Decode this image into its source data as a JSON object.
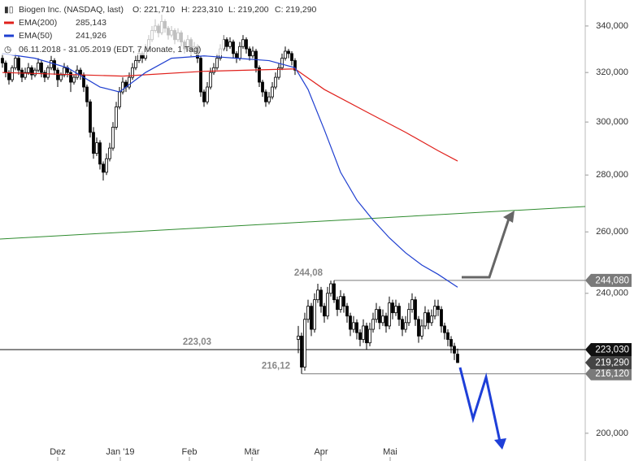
{
  "chart_data": {
    "type": "candlestick",
    "title": "Biogen Inc. (NASDAQ, last)",
    "ohlc_labels": [
      "O: 221,710",
      "H: 223,310",
      "L: 219,200",
      "C: 219,290"
    ],
    "period": "06.11.2018 - 31.05.2019 (EDT, 7 Monate, 1 Tag)",
    "log_scale": true,
    "ylim": [
      192.9,
      351.7
    ],
    "xlim": [
      -0.75,
      179.25
    ],
    "yticks": [
      {
        "value": 340,
        "label": "340,000"
      },
      {
        "value": 320,
        "label": "320,000"
      },
      {
        "value": 300,
        "label": "300,000"
      },
      {
        "value": 280,
        "label": "280,000"
      },
      {
        "value": 260,
        "label": "260,000"
      },
      {
        "value": 240,
        "label": "240,000"
      },
      {
        "value": 200,
        "label": "200,000"
      }
    ],
    "xticks": [
      {
        "value": 17,
        "label": "Dez"
      },
      {
        "value": 36.25,
        "label": "Jan '19"
      },
      {
        "value": 57.5,
        "label": "Feb"
      },
      {
        "value": 76.75,
        "label": "Mär"
      },
      {
        "value": 98,
        "label": "Apr"
      },
      {
        "value": 119.25,
        "label": "Mai"
      }
    ],
    "candles": [
      [
        326,
        328,
        322,
        324
      ],
      [
        324,
        325,
        318,
        320
      ],
      [
        320,
        321,
        315,
        317
      ],
      [
        317,
        323,
        316,
        322
      ],
      [
        322,
        328,
        321,
        326
      ],
      [
        326,
        327,
        319,
        321
      ],
      [
        321,
        322,
        316,
        318
      ],
      [
        318,
        322,
        317,
        320
      ],
      [
        320,
        324,
        319,
        322
      ],
      [
        322,
        323,
        317,
        319
      ],
      [
        319,
        322,
        318,
        321
      ],
      [
        321,
        326,
        320,
        324
      ],
      [
        324,
        325,
        318,
        320
      ],
      [
        320,
        321,
        316,
        318
      ],
      [
        318,
        323,
        317,
        322
      ],
      [
        322,
        327,
        321,
        325
      ],
      [
        325,
        326,
        319,
        321
      ],
      [
        321,
        322,
        314,
        317
      ],
      [
        317,
        320,
        316,
        319
      ],
      [
        319,
        324,
        318,
        322
      ],
      [
        322,
        323,
        318,
        320
      ],
      [
        320,
        321,
        312,
        316
      ],
      [
        316,
        319,
        315,
        318
      ],
      [
        318,
        323,
        317,
        321
      ],
      [
        321,
        322,
        317,
        319
      ],
      [
        319,
        320,
        312,
        314
      ],
      [
        314,
        315,
        306,
        308
      ],
      [
        308,
        309,
        294,
        296
      ],
      [
        296,
        298,
        286,
        288
      ],
      [
        288,
        294,
        287,
        292
      ],
      [
        292,
        293,
        282,
        284
      ],
      [
        284,
        285,
        278,
        281
      ],
      [
        281,
        288,
        280,
        286
      ],
      [
        286,
        292,
        285,
        290
      ],
      [
        290,
        300,
        289,
        298
      ],
      [
        298,
        308,
        297,
        306
      ],
      [
        306,
        314,
        305,
        312
      ],
      [
        312,
        318,
        311,
        316
      ],
      [
        316,
        317,
        312,
        314
      ],
      [
        314,
        320,
        313,
        318
      ],
      [
        318,
        324,
        317,
        322
      ],
      [
        322,
        327,
        321,
        325
      ],
      [
        325,
        330,
        324,
        328
      ],
      [
        328,
        329,
        324,
        326
      ],
      [
        326,
        332,
        325,
        330
      ],
      [
        330,
        336,
        329,
        334
      ],
      [
        334,
        340,
        333,
        338
      ],
      [
        338,
        343,
        337,
        340
      ],
      [
        340,
        341,
        335,
        337
      ],
      [
        337,
        345,
        336,
        342
      ],
      [
        342,
        343,
        337,
        339
      ],
      [
        339,
        340,
        334,
        336
      ],
      [
        336,
        340,
        335,
        338
      ],
      [
        338,
        339,
        332,
        334
      ],
      [
        334,
        339,
        333,
        337
      ],
      [
        337,
        338,
        331,
        333
      ],
      [
        333,
        334,
        328,
        330
      ],
      [
        330,
        336,
        329,
        334
      ],
      [
        334,
        335,
        327,
        329
      ],
      [
        329,
        333,
        328,
        331
      ],
      [
        331,
        332,
        324,
        326
      ],
      [
        326,
        327,
        310,
        312
      ],
      [
        312,
        313,
        306,
        308
      ],
      [
        308,
        316,
        307,
        314
      ],
      [
        314,
        322,
        313,
        320
      ],
      [
        320,
        324,
        319,
        322
      ],
      [
        322,
        328,
        321,
        326
      ],
      [
        326,
        332,
        325,
        330
      ],
      [
        330,
        336,
        329,
        334
      ],
      [
        334,
        335,
        329,
        331
      ],
      [
        331,
        335,
        330,
        333
      ],
      [
        333,
        334,
        326,
        328
      ],
      [
        328,
        329,
        324,
        326
      ],
      [
        326,
        333,
        325,
        331
      ],
      [
        331,
        336,
        330,
        334
      ],
      [
        334,
        335,
        328,
        330
      ],
      [
        330,
        331,
        325,
        327
      ],
      [
        327,
        331,
        326,
        329
      ],
      [
        329,
        330,
        320,
        322
      ],
      [
        322,
        323,
        314,
        316
      ],
      [
        316,
        317,
        310,
        312
      ],
      [
        312,
        313,
        306,
        308
      ],
      [
        308,
        312,
        307,
        310
      ],
      [
        310,
        316,
        309,
        314
      ],
      [
        314,
        320,
        313,
        318
      ],
      [
        318,
        324,
        317,
        322
      ],
      [
        322,
        328,
        321,
        326
      ],
      [
        326,
        331,
        325,
        329
      ],
      [
        329,
        330,
        326,
        328
      ],
      [
        328,
        329,
        323,
        325
      ],
      [
        325,
        326,
        319,
        321
      ],
      [
        226,
        230,
        222,
        227
      ],
      [
        227,
        228,
        216.12,
        218
      ],
      [
        218,
        234,
        217,
        232
      ],
      [
        232,
        238,
        231,
        236
      ],
      [
        236,
        237,
        227,
        229
      ],
      [
        229,
        240,
        228,
        238
      ],
      [
        238,
        243,
        237,
        241
      ],
      [
        241,
        242,
        234,
        236
      ],
      [
        236,
        237,
        231,
        233
      ],
      [
        233,
        242,
        232,
        240
      ],
      [
        240,
        244,
        239,
        243
      ],
      [
        243,
        244.08,
        237,
        238
      ],
      [
        238,
        239,
        233,
        235
      ],
      [
        235,
        241,
        234,
        239
      ],
      [
        239,
        240,
        234,
        236
      ],
      [
        236,
        237,
        231,
        233
      ],
      [
        233,
        234,
        227,
        229
      ],
      [
        229,
        233,
        228,
        231
      ],
      [
        231,
        232,
        226,
        228
      ],
      [
        228,
        229,
        224,
        226
      ],
      [
        226,
        232,
        225,
        230
      ],
      [
        230,
        231,
        223,
        225
      ],
      [
        225,
        231,
        224,
        229
      ],
      [
        229,
        234,
        228,
        232
      ],
      [
        232,
        237,
        231,
        235
      ],
      [
        235,
        236,
        229,
        231
      ],
      [
        231,
        235,
        230,
        233
      ],
      [
        233,
        234,
        228,
        230
      ],
      [
        230,
        239,
        229,
        237
      ],
      [
        237,
        238,
        232,
        234
      ],
      [
        234,
        238,
        233,
        236
      ],
      [
        236,
        237,
        230,
        232
      ],
      [
        232,
        233,
        227,
        229
      ],
      [
        229,
        233,
        228,
        231
      ],
      [
        231,
        237,
        230,
        235
      ],
      [
        235,
        240,
        234,
        238
      ],
      [
        238,
        239,
        230,
        232
      ],
      [
        232,
        233,
        225,
        227
      ],
      [
        227,
        232,
        226,
        230
      ],
      [
        230,
        236,
        229,
        234
      ],
      [
        234,
        235,
        229,
        231
      ],
      [
        231,
        235,
        230,
        233
      ],
      [
        233,
        238,
        232,
        236
      ],
      [
        236,
        238,
        233,
        235
      ],
      [
        235,
        236,
        228,
        230
      ],
      [
        230,
        231,
        226,
        228
      ],
      [
        228,
        229,
        224,
        226
      ],
      [
        226,
        227,
        222,
        224
      ],
      [
        224,
        225,
        220,
        222
      ],
      [
        221.71,
        223.31,
        219.2,
        219.29
      ]
    ],
    "series": [
      {
        "name": "EMA(200)",
        "value_label": "285,143",
        "color": "#e0201b",
        "x": [
          0,
          37,
          62,
          90,
          99,
          112,
          124,
          134,
          140
        ],
        "values": [
          320,
          318.5,
          320.5,
          321.5,
          313,
          304,
          296,
          289,
          285.143
        ]
      },
      {
        "name": "EMA(50)",
        "value_label": "241,926",
        "color": "#1f3fd0",
        "x": [
          0,
          10,
          20,
          30,
          36,
          44,
          52,
          62,
          72,
          82,
          90,
          94,
          99,
          104,
          109,
          114,
          119,
          124,
          129,
          134,
          140
        ],
        "values": [
          328,
          326,
          322,
          314,
          312,
          320,
          326,
          327,
          326,
          325,
          322,
          313,
          297,
          281,
          271,
          264,
          258,
          253,
          249,
          246,
          241.926
        ]
      }
    ],
    "levels": [
      {
        "value": 244.08,
        "start": 102,
        "label": "244,08",
        "tag": "244,080",
        "color": "#7a7a7a"
      },
      {
        "value": 223.03,
        "start": -0.75,
        "label": "223,03",
        "tag": "223,030",
        "color": "#111111"
      },
      {
        "value": 216.12,
        "start": 92,
        "label": "216,12",
        "tag": "216,120",
        "color": "#7a7a7a"
      }
    ],
    "last_price": {
      "value": 219.29,
      "tag": "219,290",
      "color": "#444444"
    }
  }
}
